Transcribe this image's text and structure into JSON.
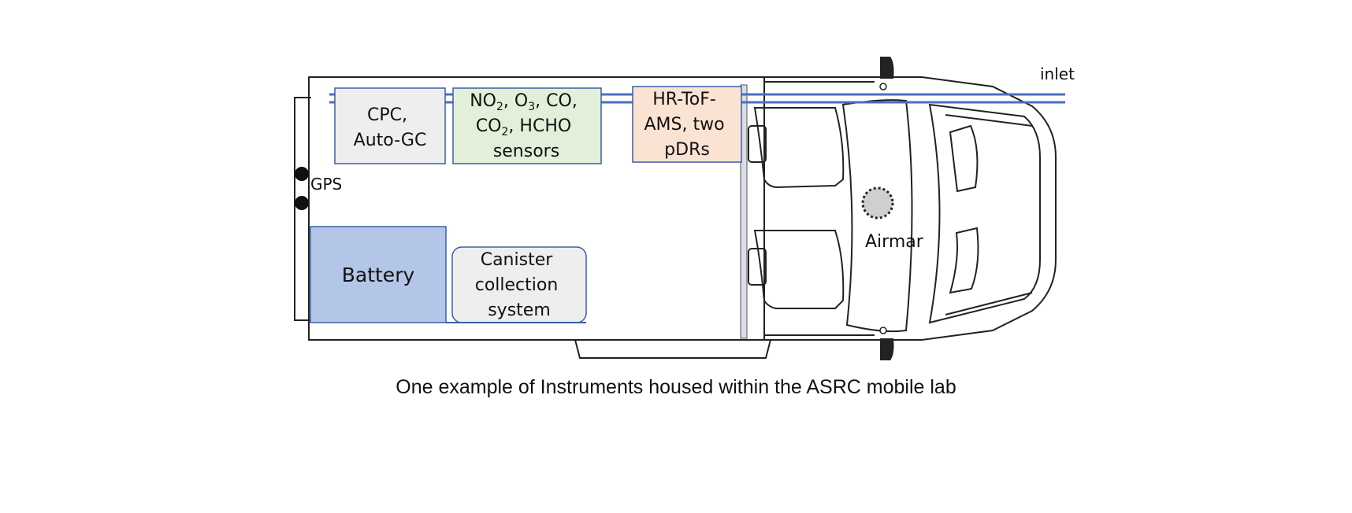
{
  "labels": {
    "cpc_line1": "CPC,",
    "cpc_line2": "Auto-GC",
    "sensors_no2": "NO",
    "sensors_no2_sub": "2",
    "sensors_o3": "O",
    "sensors_o3_sub": "3",
    "sensors_line1_rest": "CO,",
    "sensors_co2": "CO",
    "sensors_co2_sub": "2",
    "sensors_line2_rest": "HCHO",
    "sensors_line3": "sensors",
    "ams_line1": "HR-ToF-",
    "ams_line2": "AMS, two",
    "ams_line3": "pDRs",
    "battery": "Battery",
    "canister_line1": "Canister",
    "canister_line2": "collection",
    "canister_line3": "system",
    "gps": "GPS",
    "airmar": "Airmar",
    "inlet": "inlet"
  },
  "caption": "One example of Instruments housed within the ASRC mobile lab",
  "colors": {
    "inlet_line": "#4a6fc0",
    "box_border": "#3b5ea8",
    "cpc_fill": "#eeeeee",
    "sensors_fill": "#e3f0d9",
    "ams_fill": "#fbe3d3",
    "battery_fill": "#b4c6e7",
    "canister_fill": "#eeeeee",
    "outline": "#222222"
  }
}
